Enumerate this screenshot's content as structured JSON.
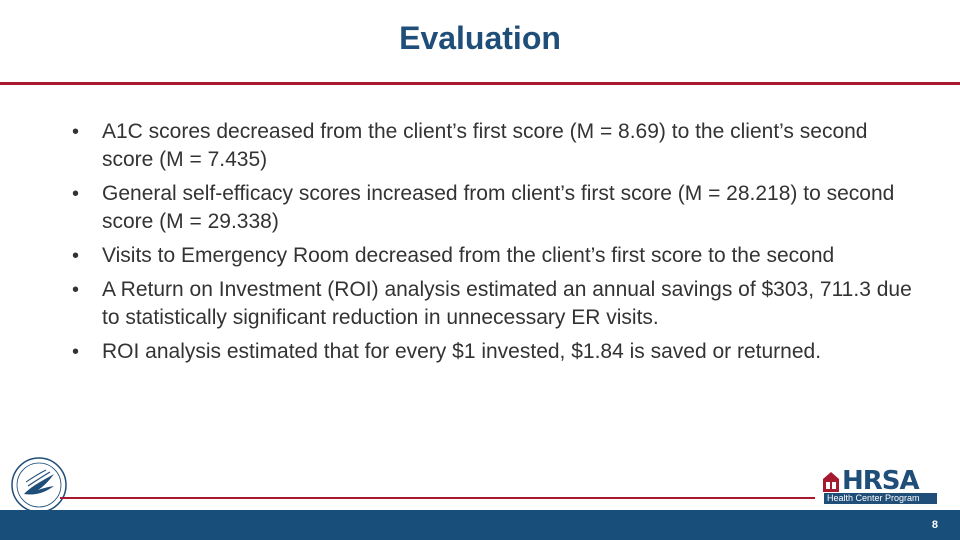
{
  "slide": {
    "title": "Evaluation",
    "page_number": "8"
  },
  "bullets": [
    "A1C scores decreased from the client’s first score (M = 8.69) to the client’s second score (M = 7.435)",
    "General self-efficacy scores increased from client’s first score (M = 28.218) to second score (M = 29.338)",
    "Visits to Emergency Room decreased from the client’s first score to the second",
    "A Return on Investment (ROI) analysis estimated an annual savings of $303, 711.3 due to statistically significant reduction in unnecessary ER visits.",
    "ROI analysis estimated that for every $1 invested, $1.84 is saved or returned."
  ],
  "bullet_glyph": "•",
  "logos": {
    "hrsa_word": "HRSA",
    "hrsa_subtitle": "Health Center Program",
    "hhs_seal": "hhs-seal-icon"
  },
  "colors": {
    "title": "#1f4e79",
    "rule": "#a6192e",
    "footer": "#174f7a",
    "text": "#333333"
  }
}
